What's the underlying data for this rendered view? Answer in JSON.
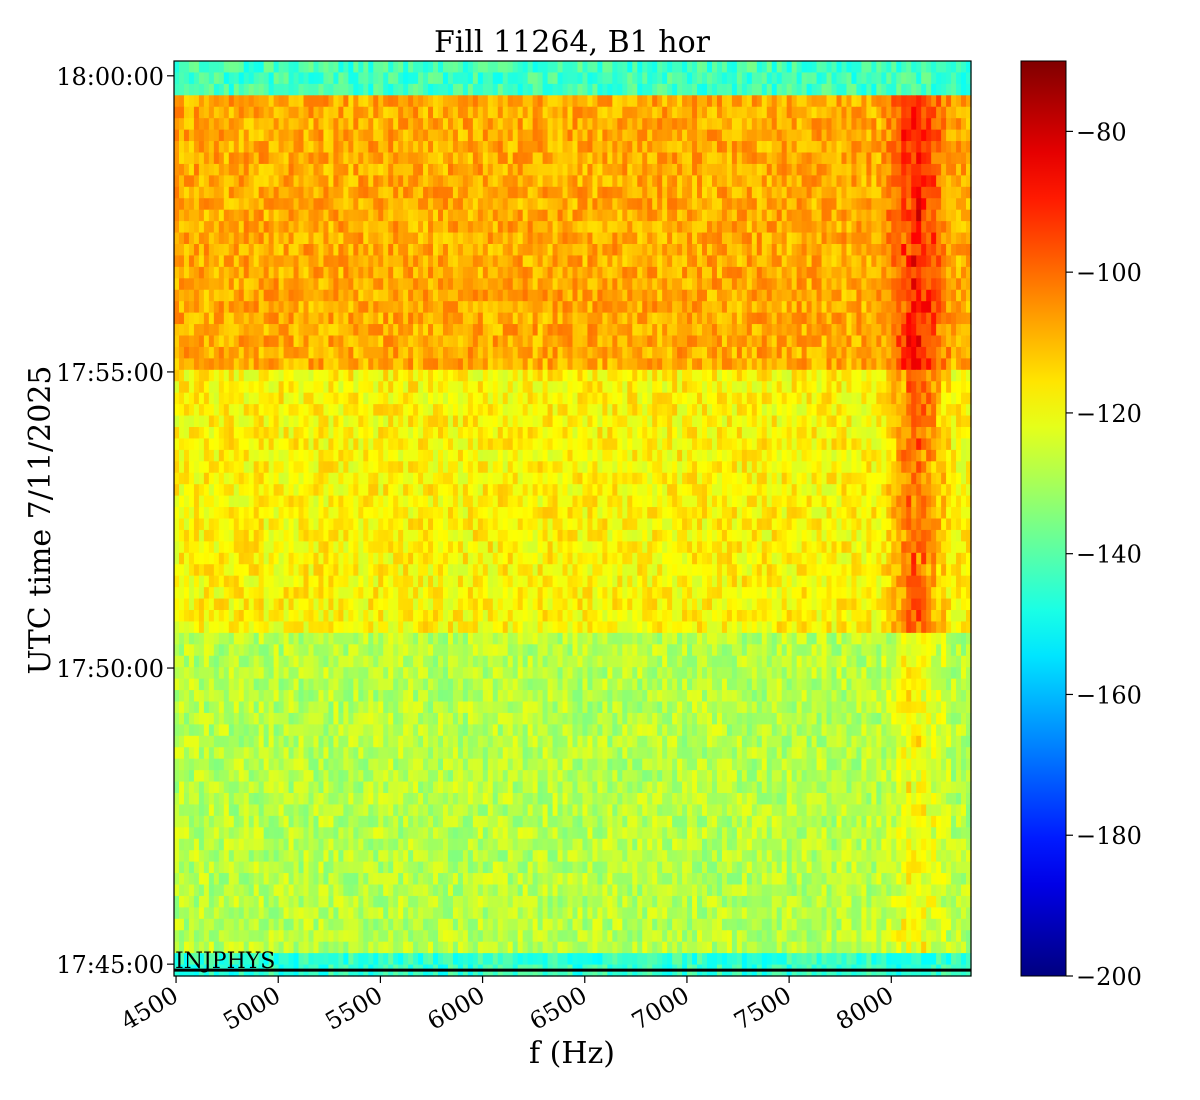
{
  "chart_data": {
    "type": "heatmap",
    "title": "Fill 11264, B1 hor",
    "xlabel": "f (Hz)",
    "ylabel": "UTC time 7/11/2025",
    "x_ticks": [
      "4500",
      "5000",
      "5500",
      "6000",
      "6500",
      "7000",
      "7500",
      "8000"
    ],
    "x_tick_values": [
      4500,
      5000,
      5500,
      6000,
      6500,
      7000,
      7500,
      8000
    ],
    "xlim": [
      4490,
      8390
    ],
    "y_ticks": [
      "18:00:00",
      "17:55:00",
      "17:50:00",
      "17:45:00"
    ],
    "y_tick_minutes": [
      15,
      10,
      5,
      0
    ],
    "ylim_minutes": [
      -0.2,
      15.25
    ],
    "colorbar": {
      "ticks": [
        "−80",
        "−100",
        "−120",
        "−140",
        "−160",
        "−180",
        "−200"
      ],
      "tick_values": [
        -80,
        -100,
        -120,
        -140,
        -160,
        -180,
        -200
      ],
      "range": [
        -200,
        -70
      ],
      "colormap": "jet"
    },
    "regions": [
      {
        "t_start": 14.6,
        "t_end": 15.25,
        "level": -143
      },
      {
        "t_start": 10.0,
        "t_end": 14.6,
        "level": -108
      },
      {
        "t_start": 5.6,
        "t_end": 10.0,
        "level": -118
      },
      {
        "t_start": 0.25,
        "t_end": 5.6,
        "level": -128
      },
      {
        "t_start": -0.2,
        "t_end": 0.25,
        "level": -145
      }
    ],
    "hot_band": {
      "f_start": 7950,
      "f_end": 8300,
      "t_start": 0.25,
      "t_end": 14.6,
      "peak_level": -82
    },
    "annotation": {
      "text": "INJPHYS",
      "t": -0.1
    }
  }
}
